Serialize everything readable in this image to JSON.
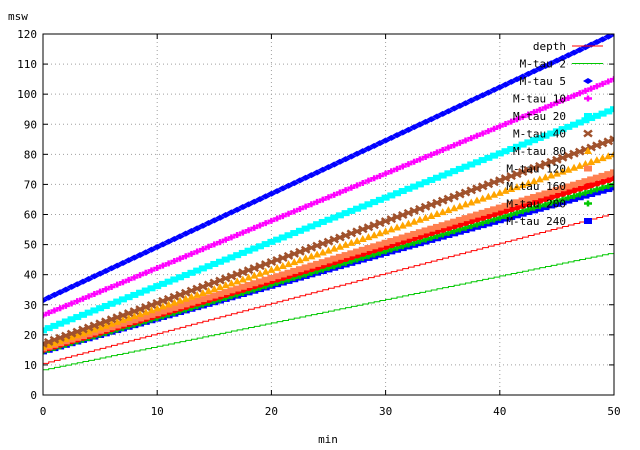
{
  "chart_data": {
    "type": "line",
    "title": "",
    "xlabel": "min",
    "ylabel": "msw",
    "xlim": [
      0,
      50
    ],
    "ylim": [
      0,
      120
    ],
    "x_ticks": [
      0,
      10,
      20,
      30,
      40,
      50
    ],
    "y_ticks": [
      0,
      10,
      20,
      30,
      40,
      50,
      60,
      70,
      80,
      90,
      100,
      110,
      120
    ],
    "grid": true,
    "legend_position": "top-right",
    "series": [
      {
        "name": "depth",
        "color": "#ff0000",
        "marker": "none",
        "x": [
          0,
          50
        ],
        "y": [
          10,
          60
        ]
      },
      {
        "name": "M-tau 2",
        "color": "#00c800",
        "marker": "none",
        "x": [
          0,
          50
        ],
        "y": [
          8,
          47
        ]
      },
      {
        "name": "M-tau 5",
        "color": "#0000ff",
        "marker": "diamond",
        "x": [
          0,
          50
        ],
        "y": [
          31.5,
          120
        ]
      },
      {
        "name": "M-tau 10",
        "color": "#ff00ff",
        "marker": "plus",
        "x": [
          0,
          50
        ],
        "y": [
          26.5,
          105
        ]
      },
      {
        "name": "M-tau 20",
        "color": "#00ffff",
        "marker": "square",
        "x": [
          0,
          50
        ],
        "y": [
          21.5,
          95
        ]
      },
      {
        "name": "M-tau 40",
        "color": "#a0522d",
        "marker": "cross",
        "x": [
          0,
          50
        ],
        "y": [
          17,
          85
        ]
      },
      {
        "name": "M-tau 80",
        "color": "#ffa500",
        "marker": "triangle",
        "x": [
          0,
          50
        ],
        "y": [
          16,
          80
        ]
      },
      {
        "name": "M-tau 120",
        "color": "#ff7f50",
        "marker": "square",
        "x": [
          0,
          50
        ],
        "y": [
          15.5,
          74
        ]
      },
      {
        "name": "M-tau 160",
        "color": "#ff0000",
        "marker": "circle",
        "x": [
          0,
          50
        ],
        "y": [
          15,
          72
        ]
      },
      {
        "name": "M-tau 200",
        "color": "#00c800",
        "marker": "plus",
        "x": [
          0,
          50
        ],
        "y": [
          14.5,
          70
        ]
      },
      {
        "name": "M-tau 240",
        "color": "#0000ff",
        "marker": "square",
        "x": [
          0,
          50
        ],
        "y": [
          14.5,
          69
        ]
      }
    ]
  }
}
